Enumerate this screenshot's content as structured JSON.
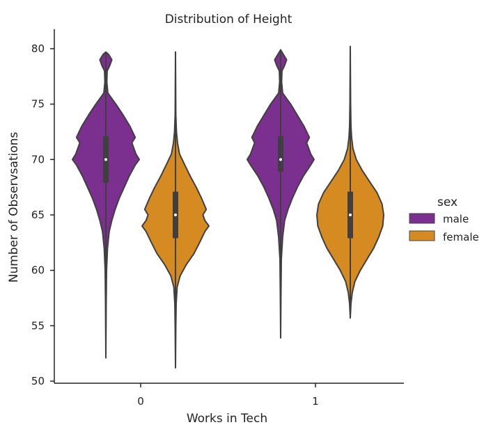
{
  "chart_data": {
    "type": "violin",
    "title": "Distribution of Height",
    "xlabel": "Works in Tech",
    "ylabel": "Number of Observsations",
    "categories": [
      "0",
      "1"
    ],
    "ylim": [
      50,
      80
    ],
    "yticks": [
      50,
      55,
      60,
      65,
      70,
      75,
      80
    ],
    "legend": {
      "title": "sex",
      "placement": "right",
      "entries": [
        "male",
        "female"
      ]
    },
    "series": [
      {
        "name": "male",
        "color": "#7B2F8E",
        "violins": [
          {
            "category": "0",
            "min": 52.1,
            "q1": 67.9,
            "median": 70.0,
            "q3": 72.1,
            "max": 79.7,
            "density": [
              [
                52.1,
                0.0
              ],
              [
                57,
                0.01
              ],
              [
                60,
                0.02
              ],
              [
                62,
                0.05
              ],
              [
                63.5,
                0.1
              ],
              [
                64.5,
                0.18
              ],
              [
                65.5,
                0.28
              ],
              [
                66.5,
                0.4
              ],
              [
                67.5,
                0.55
              ],
              [
                68.5,
                0.7
              ],
              [
                69.5,
                0.88
              ],
              [
                70,
                1.0
              ],
              [
                70.5,
                0.9
              ],
              [
                71.5,
                0.78
              ],
              [
                72,
                0.88
              ],
              [
                73,
                0.72
              ],
              [
                74,
                0.52
              ],
              [
                75,
                0.3
              ],
              [
                75.5,
                0.18
              ],
              [
                76,
                0.06
              ],
              [
                77,
                0.03
              ],
              [
                78,
                0.04
              ],
              [
                78.5,
                0.12
              ],
              [
                79,
                0.18
              ],
              [
                79.5,
                0.08
              ],
              [
                79.7,
                0.0
              ]
            ]
          },
          {
            "category": "1",
            "min": 53.9,
            "q1": 68.9,
            "median": 70.0,
            "q3": 72.1,
            "max": 79.9,
            "density": [
              [
                53.9,
                0.0
              ],
              [
                58,
                0.01
              ],
              [
                61,
                0.02
              ],
              [
                63,
                0.06
              ],
              [
                64.5,
                0.12
              ],
              [
                65.5,
                0.22
              ],
              [
                66.5,
                0.35
              ],
              [
                67.5,
                0.5
              ],
              [
                68.5,
                0.68
              ],
              [
                69.5,
                0.9
              ],
              [
                70,
                1.0
              ],
              [
                70.5,
                0.9
              ],
              [
                71.5,
                0.78
              ],
              [
                72,
                0.86
              ],
              [
                73,
                0.7
              ],
              [
                74,
                0.5
              ],
              [
                75,
                0.3
              ],
              [
                75.5,
                0.18
              ],
              [
                76,
                0.06
              ],
              [
                77,
                0.03
              ],
              [
                78,
                0.04
              ],
              [
                78.5,
                0.12
              ],
              [
                79,
                0.18
              ],
              [
                79.5,
                0.08
              ],
              [
                79.9,
                0.0
              ]
            ]
          }
        ]
      },
      {
        "name": "female",
        "color": "#D68B22",
        "violins": [
          {
            "category": "0",
            "min": 51.2,
            "q1": 62.9,
            "median": 65.0,
            "q3": 67.1,
            "max": 79.7,
            "density": [
              [
                51.2,
                0.0
              ],
              [
                55,
                0.01
              ],
              [
                57,
                0.02
              ],
              [
                58.5,
                0.05
              ],
              [
                59.5,
                0.14
              ],
              [
                60.5,
                0.32
              ],
              [
                61.5,
                0.55
              ],
              [
                62.5,
                0.72
              ],
              [
                63.5,
                0.88
              ],
              [
                64,
                1.0
              ],
              [
                64.5,
                0.88
              ],
              [
                65,
                0.82
              ],
              [
                65.5,
                0.92
              ],
              [
                66.5,
                0.78
              ],
              [
                67.5,
                0.62
              ],
              [
                68.5,
                0.44
              ],
              [
                69.5,
                0.28
              ],
              [
                70.5,
                0.12
              ],
              [
                71.5,
                0.06
              ],
              [
                72.5,
                0.03
              ],
              [
                74,
                0.01
              ],
              [
                79.7,
                0.0
              ]
            ]
          },
          {
            "category": "1",
            "min": 55.7,
            "q1": 62.9,
            "median": 65.0,
            "q3": 67.1,
            "max": 80.2,
            "density": [
              [
                55.7,
                0.0
              ],
              [
                57,
                0.02
              ],
              [
                58,
                0.06
              ],
              [
                59,
                0.14
              ],
              [
                60,
                0.3
              ],
              [
                61,
                0.5
              ],
              [
                62,
                0.7
              ],
              [
                63,
                0.85
              ],
              [
                64,
                0.97
              ],
              [
                65,
                1.0
              ],
              [
                66,
                0.95
              ],
              [
                67,
                0.8
              ],
              [
                68,
                0.58
              ],
              [
                69,
                0.36
              ],
              [
                70,
                0.18
              ],
              [
                71,
                0.08
              ],
              [
                72,
                0.04
              ],
              [
                73,
                0.02
              ],
              [
                75,
                0.01
              ],
              [
                80.2,
                0.0
              ]
            ]
          }
        ]
      }
    ]
  }
}
